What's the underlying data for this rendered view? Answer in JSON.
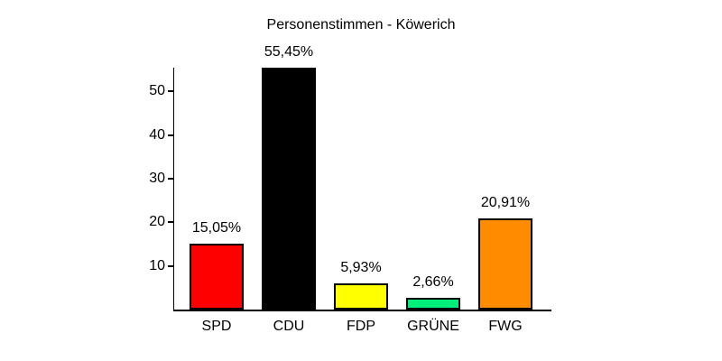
{
  "chart_data": {
    "type": "bar",
    "title": "Personenstimmen - Köwerich",
    "categories": [
      "SPD",
      "CDU",
      "FDP",
      "GRÜNE",
      "FWG"
    ],
    "values": [
      15.05,
      55.45,
      5.93,
      2.66,
      20.91
    ],
    "value_labels": [
      "15,05%",
      "55,45%",
      "5,93%",
      "2,66%",
      "20,91%"
    ],
    "bar_colors": [
      "#ff0000",
      "#000000",
      "#ffff00",
      "#00ee7a",
      "#ff8c00"
    ],
    "bar_border_color": "#000000",
    "yticks": [
      10,
      20,
      30,
      40,
      50
    ],
    "ylim": [
      0,
      55.45
    ],
    "xlabel": "",
    "ylabel": "",
    "grid": false,
    "legend": null,
    "background_color": "#ffffff",
    "text_color": "#000000"
  }
}
